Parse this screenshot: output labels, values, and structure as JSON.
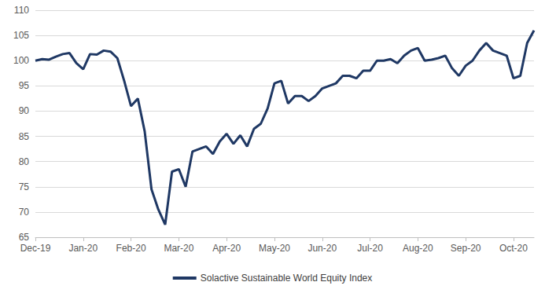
{
  "chart_data": {
    "type": "line",
    "categories": [
      "Dec-19",
      null,
      null,
      null,
      null,
      null,
      null,
      "Jan-20",
      null,
      null,
      null,
      null,
      null,
      null,
      "Feb-20",
      null,
      null,
      null,
      null,
      null,
      null,
      "Mar-20",
      null,
      null,
      null,
      null,
      null,
      null,
      "Apr-20",
      null,
      null,
      null,
      null,
      null,
      null,
      "May-20",
      null,
      null,
      null,
      null,
      null,
      null,
      "Jun-20",
      null,
      null,
      null,
      null,
      null,
      null,
      "Jul-20",
      null,
      null,
      null,
      null,
      null,
      null,
      "Aug-20",
      null,
      null,
      null,
      null,
      null,
      null,
      "Sep-20",
      null,
      null,
      null,
      null,
      null,
      null,
      "Oct-20",
      null,
      null,
      null
    ],
    "series": [
      {
        "name": "Solactive Sustainable World Equity Index",
        "color": "#1f3864",
        "values": [
          100,
          100.3,
          100.2,
          100.8,
          101.3,
          101.5,
          99.5,
          98.3,
          101.3,
          101.2,
          102,
          101.8,
          100.5,
          96,
          91,
          92.5,
          86,
          74.5,
          70.5,
          67.5,
          78,
          78.5,
          75,
          82,
          82.5,
          83,
          81.5,
          84,
          85.5,
          83.5,
          85.2,
          83,
          86.5,
          87.5,
          90.5,
          95.5,
          96,
          91.5,
          93,
          93,
          92,
          93,
          94.5,
          95,
          95.5,
          97,
          97,
          96.5,
          98,
          98,
          100,
          100,
          100.3,
          99.5,
          101,
          102,
          102.5,
          100,
          100.2,
          100.5,
          101,
          98.5,
          97,
          99,
          100,
          102,
          103.5,
          102,
          101.5,
          101,
          96.5,
          97,
          103.5,
          106
        ]
      }
    ],
    "ylim": [
      65,
      110
    ],
    "yticks": [
      65,
      70,
      75,
      80,
      85,
      90,
      95,
      100,
      105,
      110
    ],
    "grid": true,
    "legend": "bottom"
  }
}
